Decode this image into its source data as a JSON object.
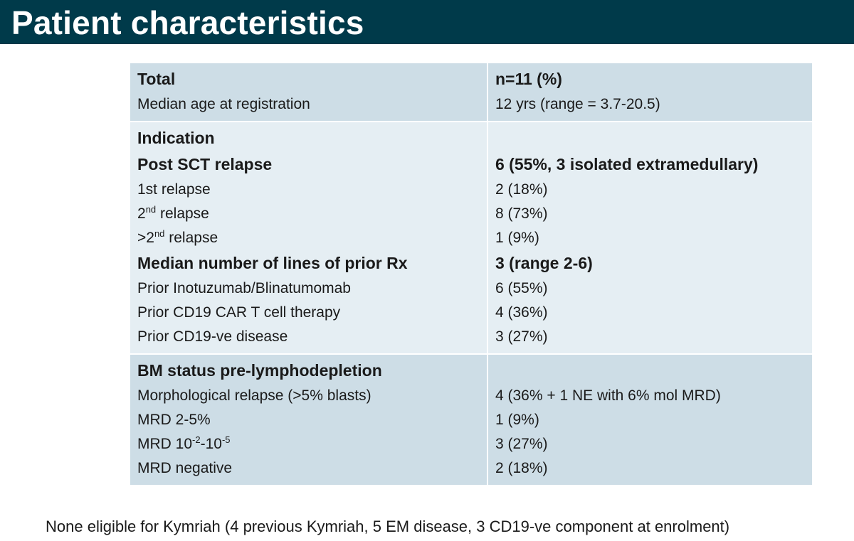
{
  "title": "Patient characteristics",
  "table": {
    "total": {
      "label": "Total",
      "value": "n=11 (%)"
    },
    "median_age": {
      "label": "Median age at registration",
      "value": "12 yrs (range = 3.7-20.5)"
    },
    "indication": {
      "label": "Indication"
    },
    "post_sct": {
      "label": "Post SCT relapse",
      "value": "6 (55%, 3 isolated extramedullary)"
    },
    "relapse_1st": {
      "label": "1st relapse",
      "value": "2 (18%)"
    },
    "relapse_2nd": {
      "prefix": "2",
      "sup": "nd",
      "label": " relapse",
      "value": "8 (73%)"
    },
    "relapse_gt2": {
      "prefix": ">2",
      "sup": "nd",
      "label": " relapse",
      "value": "1 (9%)"
    },
    "median_lines": {
      "label": "Median number of lines of prior Rx",
      "value": "3 (range 2-6)"
    },
    "prior_ino": {
      "label": "Prior Inotuzumab/Blinatumomab",
      "value": "6 (55%)"
    },
    "prior_car": {
      "label": "Prior CD19 CAR T cell therapy",
      "value": "4 (36%)"
    },
    "prior_cd19neg": {
      "label": "Prior CD19-ve disease",
      "value": "3 (27%)"
    },
    "bm_status": {
      "label": "BM status pre-lymphodepletion"
    },
    "morph": {
      "label": "Morphological relapse (>5% blasts)",
      "value": "4 (36% + 1 NE with 6% mol MRD)"
    },
    "mrd_2_5": {
      "label": "MRD 2-5%",
      "value": "1 (9%)"
    },
    "mrd_range": {
      "prefix": "MRD 10",
      "sup1": "-2",
      "mid": "-10",
      "sup2": "-5",
      "value": "3 (27%)"
    },
    "mrd_neg": {
      "label": "MRD negative",
      "value": "2 (18%)"
    }
  },
  "footnote": "None eligible for Kymriah (4 previous Kymriah, 5 EM disease, 3 CD19-ve component at enrolment)",
  "colors": {
    "title_bar": "#003a4a",
    "row_dark": "#cddde6",
    "row_light": "#e5eef3"
  }
}
